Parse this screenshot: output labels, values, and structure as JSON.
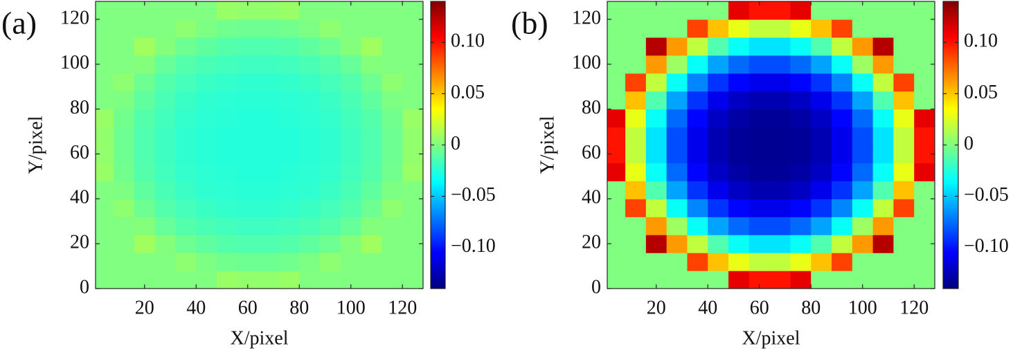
{
  "chart_data": [
    {
      "type": "heatmap",
      "title": "(a)",
      "xlabel": "X/pixel",
      "ylabel": "Y/pixel",
      "colormap": "jet",
      "x": [
        4,
        12,
        20,
        28,
        36,
        44,
        52,
        60,
        68,
        76,
        84,
        92,
        100,
        108,
        116,
        124
      ],
      "y": [
        4,
        12,
        20,
        28,
        36,
        44,
        52,
        60,
        68,
        76,
        84,
        92,
        100,
        108,
        116,
        124
      ],
      "z": [
        [
          0,
          0,
          0,
          0,
          0,
          0,
          0.007,
          0.005,
          0.005,
          0.007,
          0,
          0,
          0,
          0,
          0,
          0
        ],
        [
          0,
          0,
          0,
          0,
          0.004,
          -0.001,
          -0.004,
          -0.005,
          -0.005,
          -0.004,
          -0.001,
          0.004,
          0,
          0,
          0,
          0
        ],
        [
          0,
          0,
          0.009,
          0.001,
          -0.005,
          -0.009,
          -0.012,
          -0.013,
          -0.013,
          -0.012,
          -0.009,
          -0.005,
          0.001,
          0.009,
          0,
          0
        ],
        [
          0,
          0,
          0.001,
          -0.007,
          -0.012,
          -0.015,
          -0.017,
          -0.018,
          -0.018,
          -0.017,
          -0.015,
          -0.012,
          -0.007,
          0.001,
          0,
          0
        ],
        [
          0,
          0.004,
          -0.005,
          -0.012,
          -0.016,
          -0.019,
          -0.021,
          -0.022,
          -0.022,
          -0.021,
          -0.019,
          -0.016,
          -0.012,
          -0.005,
          0.004,
          0
        ],
        [
          0,
          -0.001,
          -0.009,
          -0.015,
          -0.019,
          -0.022,
          -0.023,
          -0.024,
          -0.024,
          -0.023,
          -0.022,
          -0.019,
          -0.015,
          -0.009,
          -0.001,
          0
        ],
        [
          0.007,
          -0.004,
          -0.012,
          -0.017,
          -0.021,
          -0.023,
          -0.024,
          -0.025,
          -0.025,
          -0.024,
          -0.023,
          -0.021,
          -0.017,
          -0.012,
          -0.004,
          0.007
        ],
        [
          0.005,
          -0.005,
          -0.013,
          -0.018,
          -0.022,
          -0.024,
          -0.025,
          -0.025,
          -0.025,
          -0.025,
          -0.024,
          -0.022,
          -0.018,
          -0.013,
          -0.005,
          0.005
        ],
        [
          0.005,
          -0.005,
          -0.013,
          -0.018,
          -0.022,
          -0.024,
          -0.025,
          -0.025,
          -0.025,
          -0.025,
          -0.024,
          -0.022,
          -0.018,
          -0.013,
          -0.005,
          0.005
        ],
        [
          0.007,
          -0.004,
          -0.012,
          -0.017,
          -0.021,
          -0.023,
          -0.024,
          -0.025,
          -0.025,
          -0.024,
          -0.023,
          -0.021,
          -0.017,
          -0.012,
          -0.004,
          0.007
        ],
        [
          0,
          -0.001,
          -0.009,
          -0.015,
          -0.019,
          -0.022,
          -0.023,
          -0.024,
          -0.024,
          -0.023,
          -0.022,
          -0.019,
          -0.015,
          -0.009,
          -0.001,
          0
        ],
        [
          0,
          0.004,
          -0.005,
          -0.012,
          -0.016,
          -0.019,
          -0.021,
          -0.022,
          -0.022,
          -0.021,
          -0.019,
          -0.016,
          -0.012,
          -0.005,
          0.004,
          0
        ],
        [
          0,
          0,
          0.001,
          -0.007,
          -0.012,
          -0.015,
          -0.017,
          -0.018,
          -0.018,
          -0.017,
          -0.015,
          -0.012,
          -0.007,
          0.001,
          0,
          0
        ],
        [
          0,
          0,
          0.009,
          0.001,
          -0.005,
          -0.009,
          -0.012,
          -0.013,
          -0.013,
          -0.012,
          -0.009,
          -0.005,
          0.001,
          0.009,
          0,
          0
        ],
        [
          0,
          0,
          0,
          0,
          0.004,
          -0.001,
          -0.004,
          -0.005,
          -0.005,
          -0.004,
          -0.001,
          0.004,
          0,
          0,
          0,
          0
        ],
        [
          0,
          0,
          0,
          0,
          0,
          0,
          0.007,
          0.005,
          0.005,
          0.007,
          0,
          0,
          0,
          0,
          0,
          0
        ]
      ],
      "xlim": [
        1,
        128
      ],
      "ylim": [
        0,
        128
      ],
      "xticks": [
        20,
        40,
        60,
        80,
        100,
        120
      ],
      "yticks": [
        0,
        20,
        40,
        60,
        80,
        100,
        120
      ],
      "clim": [
        -0.14,
        0.14
      ],
      "colorbar_ticks": [
        {
          "value": -0.1,
          "label": "−0.10"
        },
        {
          "value": -0.05,
          "label": "−0.05"
        },
        0,
        0.05,
        {
          "value": 0.1,
          "label": "0.10"
        }
      ]
    },
    {
      "type": "heatmap",
      "title": "(b)",
      "xlabel": "X/pixel",
      "ylabel": "Y/pixel",
      "colormap": "jet",
      "x": [
        4,
        12,
        20,
        28,
        36,
        44,
        52,
        60,
        68,
        76,
        84,
        92,
        100,
        108,
        116,
        124
      ],
      "y": [
        4,
        12,
        20,
        28,
        36,
        44,
        52,
        60,
        68,
        76,
        84,
        92,
        100,
        108,
        116,
        124
      ],
      "z": [
        [
          0,
          0,
          0,
          0,
          0,
          0,
          0.112,
          0.1,
          0.1,
          0.112,
          0,
          0,
          0,
          0,
          0,
          0
        ],
        [
          0,
          0,
          0,
          0,
          0.087,
          0.052,
          0.029,
          0.018,
          0.018,
          0.029,
          0.052,
          0.087,
          0,
          0,
          0,
          0
        ],
        [
          0,
          0,
          0.125,
          0.063,
          0.018,
          -0.013,
          -0.033,
          -0.042,
          -0.042,
          -0.033,
          -0.013,
          0.018,
          0.063,
          0.125,
          0,
          0
        ],
        [
          0,
          0,
          0.063,
          0.008,
          -0.033,
          -0.06,
          -0.076,
          -0.084,
          -0.084,
          -0.076,
          -0.06,
          -0.033,
          0.008,
          0.063,
          0,
          0
        ],
        [
          0,
          0.087,
          0.018,
          -0.033,
          -0.068,
          -0.091,
          -0.104,
          -0.11,
          -0.11,
          -0.104,
          -0.091,
          -0.068,
          -0.033,
          0.018,
          0.087,
          0
        ],
        [
          0,
          0.052,
          -0.013,
          -0.06,
          -0.091,
          -0.11,
          -0.121,
          -0.126,
          -0.126,
          -0.121,
          -0.11,
          -0.091,
          -0.06,
          -0.013,
          0.052,
          0
        ],
        [
          0.112,
          0.029,
          -0.033,
          -0.076,
          -0.104,
          -0.121,
          -0.13,
          -0.133,
          -0.133,
          -0.13,
          -0.121,
          -0.104,
          -0.076,
          -0.033,
          0.029,
          0.112
        ],
        [
          0.1,
          0.018,
          -0.042,
          -0.084,
          -0.11,
          -0.126,
          -0.133,
          -0.135,
          -0.135,
          -0.133,
          -0.126,
          -0.11,
          -0.084,
          -0.042,
          0.018,
          0.1
        ],
        [
          0.1,
          0.018,
          -0.042,
          -0.084,
          -0.11,
          -0.126,
          -0.133,
          -0.135,
          -0.135,
          -0.133,
          -0.126,
          -0.11,
          -0.084,
          -0.042,
          0.018,
          0.1
        ],
        [
          0.112,
          0.029,
          -0.033,
          -0.076,
          -0.104,
          -0.121,
          -0.13,
          -0.133,
          -0.133,
          -0.13,
          -0.121,
          -0.104,
          -0.076,
          -0.033,
          0.029,
          0.112
        ],
        [
          0,
          0.052,
          -0.013,
          -0.06,
          -0.091,
          -0.11,
          -0.121,
          -0.126,
          -0.126,
          -0.121,
          -0.11,
          -0.091,
          -0.06,
          -0.013,
          0.052,
          0
        ],
        [
          0,
          0.087,
          0.018,
          -0.033,
          -0.068,
          -0.091,
          -0.104,
          -0.11,
          -0.11,
          -0.104,
          -0.091,
          -0.068,
          -0.033,
          0.018,
          0.087,
          0
        ],
        [
          0,
          0,
          0.063,
          0.008,
          -0.033,
          -0.06,
          -0.076,
          -0.084,
          -0.084,
          -0.076,
          -0.06,
          -0.033,
          0.008,
          0.063,
          0,
          0
        ],
        [
          0,
          0,
          0.125,
          0.063,
          0.018,
          -0.013,
          -0.033,
          -0.042,
          -0.042,
          -0.033,
          -0.013,
          0.018,
          0.063,
          0.125,
          0,
          0
        ],
        [
          0,
          0,
          0,
          0,
          0.087,
          0.052,
          0.029,
          0.018,
          0.018,
          0.029,
          0.052,
          0.087,
          0,
          0,
          0,
          0
        ],
        [
          0,
          0,
          0,
          0,
          0,
          0,
          0.112,
          0.1,
          0.1,
          0.112,
          0,
          0,
          0,
          0,
          0,
          0
        ]
      ],
      "xlim": [
        1,
        128
      ],
      "ylim": [
        0,
        128
      ],
      "xticks": [
        20,
        40,
        60,
        80,
        100,
        120
      ],
      "yticks": [
        0,
        20,
        40,
        60,
        80,
        100,
        120
      ],
      "clim": [
        -0.14,
        0.14
      ],
      "colorbar_ticks": [
        {
          "value": -0.1,
          "label": "−0.10"
        },
        {
          "value": -0.05,
          "label": "−0.05"
        },
        0,
        0.05,
        {
          "value": 0.1,
          "label": "0.10"
        }
      ]
    }
  ]
}
